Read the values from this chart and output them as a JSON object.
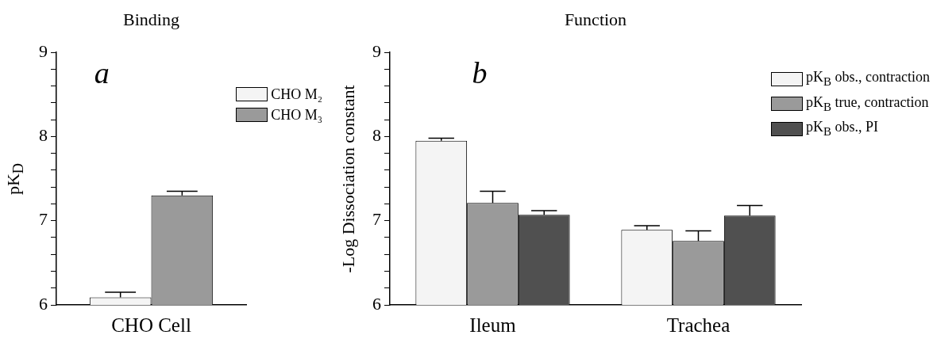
{
  "chart_data": [
    {
      "type": "bar",
      "title": "Binding",
      "ylabel": "pK$_{D}$",
      "annotations": [
        "a"
      ],
      "categories": [
        "CHO Cell"
      ],
      "series": [
        {
          "name": "CHO M₂",
          "color": "#f4f4f4",
          "values": [
            6.09
          ],
          "errors": [
            0.06
          ]
        },
        {
          "name": "CHO M₃",
          "color": "#9a9a9a",
          "values": [
            7.3
          ],
          "errors": [
            0.05
          ]
        }
      ],
      "ylim": [
        6,
        9
      ],
      "yticks": [
        6,
        {
          "value": 6.2,
          "label": null
        },
        {
          "value": 6.4,
          "label": null
        },
        {
          "value": 6.6,
          "label": null
        },
        {
          "value": 6.8,
          "label": null
        },
        7,
        {
          "value": 7.2,
          "label": null
        },
        {
          "value": 7.4,
          "label": null
        },
        {
          "value": 7.6,
          "label": null
        },
        {
          "value": 7.8,
          "label": null
        },
        8,
        {
          "value": 8.2,
          "label": null
        },
        {
          "value": 8.4,
          "label": null
        },
        {
          "value": 8.6,
          "label": null
        },
        {
          "value": 8.8,
          "label": null
        },
        9
      ],
      "grid": false,
      "legend": "top right"
    },
    {
      "type": "bar",
      "title": "Function",
      "ylabel": "-Log  Dissociation  constant",
      "annotations": [
        "b"
      ],
      "categories": [
        "Ileum",
        "Trachea"
      ],
      "series": [
        {
          "name": "pK$_{B}$ obs., contraction",
          "color": "#f4f4f4",
          "values": [
            7.95,
            6.89
          ],
          "errors": [
            0.03,
            0.05
          ]
        },
        {
          "name": "pK$_{B}$ true, contraction",
          "color": "#9a9a9a",
          "values": [
            7.21,
            6.76
          ],
          "errors": [
            0.14,
            0.12
          ]
        },
        {
          "name": "pK$_{B}$ obs., PI",
          "color": "#505050",
          "values": [
            7.07,
            7.06
          ],
          "errors": [
            0.05,
            0.12
          ]
        }
      ],
      "ylim": [
        6,
        9
      ],
      "yticks": [
        6,
        {
          "value": 6.2,
          "label": null
        },
        {
          "value": 6.4,
          "label": null
        },
        {
          "value": 6.6,
          "label": null
        },
        {
          "value": 6.8,
          "label": null
        },
        7,
        {
          "value": 7.2,
          "label": null
        },
        {
          "value": 7.4,
          "label": null
        },
        {
          "value": 7.6,
          "label": null
        },
        {
          "value": 7.8,
          "label": null
        },
        8,
        {
          "value": 8.2,
          "label": null
        },
        {
          "value": 8.4,
          "label": null
        },
        {
          "value": 8.6,
          "label": null
        },
        {
          "value": 8.8,
          "label": null
        },
        9
      ],
      "grid": false,
      "legend": "top right"
    }
  ]
}
